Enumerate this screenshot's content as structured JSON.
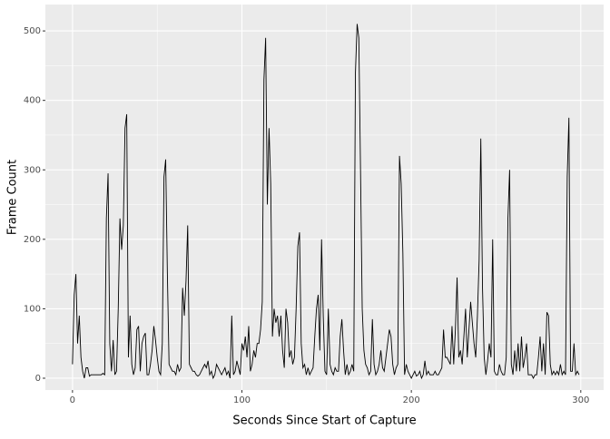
{
  "chart_data": {
    "type": "line",
    "x_label": "Seconds Since Start of Capture",
    "y_label": "Frame Count",
    "xlim": [
      -16,
      313.5
    ],
    "ylim": [
      -17,
      538
    ],
    "xticks": [
      0,
      100,
      200,
      300
    ],
    "yticks": [
      0,
      100,
      200,
      300,
      400,
      500
    ],
    "xminor": [
      50,
      150,
      250
    ],
    "yminor": [
      50,
      150,
      250,
      350,
      450
    ],
    "grid": true,
    "color": "#000000",
    "x": [
      0,
      1,
      2,
      3,
      4,
      5,
      6,
      7,
      8,
      9,
      10,
      11,
      12,
      13,
      14,
      15,
      16,
      17,
      18,
      19,
      20,
      21,
      22,
      23,
      24,
      25,
      26,
      27,
      28,
      29,
      30,
      31,
      32,
      33,
      34,
      35,
      36,
      37,
      38,
      39,
      40,
      41,
      42,
      43,
      44,
      45,
      46,
      47,
      48,
      49,
      50,
      51,
      52,
      53,
      54,
      55,
      56,
      57,
      58,
      59,
      60,
      61,
      62,
      63,
      64,
      65,
      66,
      67,
      68,
      69,
      70,
      71,
      72,
      73,
      74,
      75,
      76,
      77,
      78,
      79,
      80,
      81,
      82,
      83,
      84,
      85,
      86,
      87,
      88,
      89,
      90,
      91,
      92,
      93,
      94,
      95,
      96,
      97,
      98,
      99,
      100,
      101,
      102,
      103,
      104,
      105,
      106,
      107,
      108,
      109,
      110,
      111,
      112,
      113,
      114,
      115,
      116,
      117,
      118,
      119,
      120,
      121,
      122,
      123,
      124,
      125,
      126,
      127,
      128,
      129,
      130,
      131,
      132,
      133,
      134,
      135,
      136,
      137,
      138,
      139,
      140,
      141,
      142,
      143,
      144,
      145,
      146,
      147,
      148,
      149,
      150,
      151,
      152,
      153,
      154,
      155,
      156,
      157,
      158,
      159,
      160,
      161,
      162,
      163,
      164,
      165,
      166,
      167,
      168,
      169,
      170,
      171,
      172,
      173,
      174,
      175,
      176,
      177,
      178,
      179,
      180,
      181,
      182,
      183,
      184,
      185,
      186,
      187,
      188,
      189,
      190,
      191,
      192,
      193,
      194,
      195,
      196,
      197,
      198,
      199,
      200,
      201,
      202,
      203,
      204,
      205,
      206,
      207,
      208,
      209,
      210,
      211,
      212,
      213,
      214,
      215,
      216,
      217,
      218,
      219,
      220,
      221,
      222,
      223,
      224,
      225,
      226,
      227,
      228,
      229,
      230,
      231,
      232,
      233,
      234,
      235,
      236,
      237,
      238,
      239,
      240,
      241,
      242,
      243,
      244,
      245,
      246,
      247,
      248,
      249,
      250,
      251,
      252,
      253,
      254,
      255,
      256,
      257,
      258,
      259,
      260,
      261,
      262,
      263,
      264,
      265,
      266,
      267,
      268,
      269,
      270,
      271,
      272,
      273,
      274,
      275,
      276,
      277,
      278,
      279,
      280,
      281,
      282,
      283,
      284,
      285,
      286,
      287,
      288,
      289,
      290,
      291,
      292,
      293,
      294,
      295,
      296,
      297,
      298,
      299
    ],
    "values": [
      20,
      120,
      150,
      50,
      90,
      30,
      10,
      0,
      15,
      15,
      3,
      5,
      5,
      5,
      5,
      5,
      5,
      5,
      7,
      5,
      230,
      295,
      50,
      10,
      55,
      5,
      10,
      100,
      230,
      185,
      220,
      360,
      380,
      30,
      90,
      20,
      5,
      15,
      70,
      75,
      10,
      50,
      60,
      65,
      5,
      5,
      20,
      40,
      75,
      55,
      30,
      10,
      5,
      50,
      290,
      315,
      150,
      20,
      15,
      10,
      10,
      5,
      20,
      10,
      15,
      130,
      90,
      140,
      220,
      20,
      15,
      10,
      10,
      5,
      3,
      5,
      10,
      15,
      20,
      15,
      25,
      5,
      10,
      0,
      5,
      20,
      15,
      10,
      5,
      10,
      15,
      5,
      10,
      0,
      90,
      5,
      10,
      25,
      15,
      5,
      50,
      40,
      60,
      30,
      75,
      10,
      20,
      40,
      30,
      50,
      50,
      70,
      110,
      430,
      490,
      250,
      360,
      280,
      60,
      100,
      80,
      90,
      60,
      90,
      40,
      15,
      100,
      80,
      30,
      40,
      20,
      30,
      100,
      190,
      210,
      50,
      15,
      20,
      5,
      15,
      5,
      10,
      15,
      60,
      100,
      120,
      40,
      200,
      90,
      10,
      5,
      100,
      20,
      10,
      5,
      15,
      10,
      10,
      60,
      85,
      40,
      5,
      20,
      5,
      10,
      20,
      10,
      440,
      510,
      490,
      300,
      100,
      40,
      20,
      15,
      5,
      10,
      85,
      20,
      5,
      10,
      20,
      40,
      15,
      10,
      30,
      50,
      70,
      60,
      20,
      5,
      15,
      20,
      320,
      280,
      180,
      5,
      20,
      10,
      5,
      0,
      5,
      10,
      3,
      5,
      10,
      0,
      5,
      25,
      5,
      10,
      5,
      5,
      5,
      10,
      5,
      5,
      10,
      15,
      70,
      30,
      30,
      25,
      20,
      75,
      20,
      70,
      145,
      30,
      40,
      20,
      60,
      100,
      30,
      70,
      110,
      80,
      50,
      30,
      90,
      170,
      345,
      130,
      30,
      5,
      25,
      50,
      30,
      200,
      10,
      5,
      5,
      20,
      10,
      5,
      5,
      30,
      230,
      300,
      20,
      5,
      40,
      10,
      50,
      10,
      60,
      15,
      30,
      50,
      5,
      5,
      5,
      0,
      5,
      5,
      30,
      60,
      10,
      50,
      5,
      95,
      90,
      20,
      5,
      10,
      5,
      10,
      5,
      20,
      5,
      10,
      5,
      290,
      375,
      10,
      10,
      50,
      5,
      10,
      5
    ]
  }
}
